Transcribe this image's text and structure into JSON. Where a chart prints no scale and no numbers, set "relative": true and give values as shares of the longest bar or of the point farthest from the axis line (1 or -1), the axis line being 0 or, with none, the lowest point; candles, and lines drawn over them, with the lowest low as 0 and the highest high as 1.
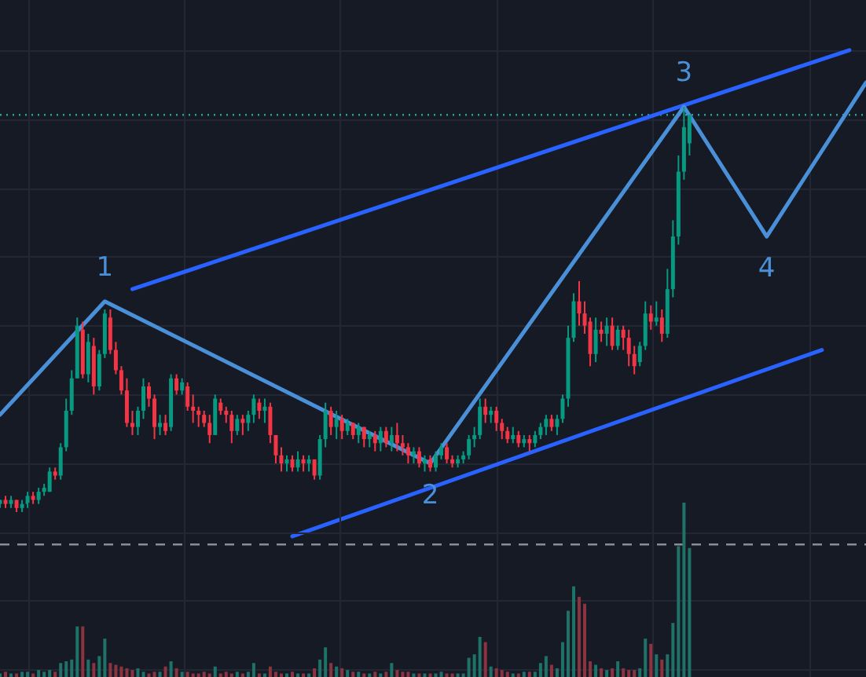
{
  "chart_data": [
    {
      "type": "candlestick",
      "relative": true,
      "grid": true,
      "categories": [
        null,
        null,
        null,
        null,
        null,
        null,
        null,
        null,
        null,
        null,
        null,
        null,
        null,
        null,
        null,
        null,
        null,
        null,
        null,
        null,
        null,
        null,
        null,
        null,
        null,
        null,
        null,
        null,
        null,
        null,
        null,
        null,
        null,
        null,
        null,
        null,
        null,
        null,
        null,
        null,
        null,
        null,
        null,
        null,
        null,
        null,
        null,
        null,
        null,
        null,
        null,
        null,
        null,
        null,
        null,
        null,
        null,
        null,
        null,
        null,
        null,
        null,
        null,
        null,
        null,
        null,
        null,
        null,
        null,
        null,
        null,
        null,
        null,
        null,
        null,
        null,
        null,
        null,
        null,
        null,
        null,
        null,
        null,
        null,
        null,
        null,
        null,
        null,
        null,
        null,
        null,
        null,
        null,
        null,
        null,
        null,
        null,
        null,
        null,
        null,
        null,
        null,
        null,
        null,
        null,
        null,
        null,
        null,
        null,
        null,
        null,
        null,
        null,
        null,
        null,
        null,
        null,
        null,
        null,
        null,
        null,
        null,
        null,
        null,
        null,
        null,
        null,
        null,
        null,
        null,
        null,
        null,
        null,
        null,
        null,
        null,
        null,
        null,
        null,
        null,
        null,
        null,
        null,
        null,
        null,
        null,
        null,
        null,
        null,
        null,
        null,
        null,
        null,
        null,
        null,
        null,
        null,
        null
      ],
      "ohlc": [
        [
          0.02,
          0.03,
          0.01,
          0.03
        ],
        [
          0.03,
          0.04,
          0.01,
          0.02
        ],
        [
          0.02,
          0.04,
          0.01,
          0.03
        ],
        [
          0.03,
          0.03,
          0,
          0.01
        ],
        [
          0.01,
          0.03,
          0,
          0.02
        ],
        [
          0.02,
          0.05,
          0.01,
          0.04
        ],
        [
          0.04,
          0.05,
          0.02,
          0.03
        ],
        [
          0.03,
          0.06,
          0.02,
          0.05
        ],
        [
          0.05,
          0.07,
          0.04,
          0.06
        ],
        [
          0.05,
          0.11,
          0.05,
          0.1
        ],
        [
          0.1,
          0.11,
          0.08,
          0.09
        ],
        [
          0.09,
          0.17,
          0.08,
          0.16
        ],
        [
          0.16,
          0.28,
          0.15,
          0.25
        ],
        [
          0.25,
          0.35,
          0.24,
          0.33
        ],
        [
          0.33,
          0.48,
          0.33,
          0.46
        ],
        [
          0.45,
          0.47,
          0.33,
          0.34
        ],
        [
          0.34,
          0.44,
          0.32,
          0.42
        ],
        [
          0.41,
          0.43,
          0.29,
          0.31
        ],
        [
          0.31,
          0.4,
          0.3,
          0.39
        ],
        [
          0.39,
          0.5,
          0.38,
          0.49
        ],
        [
          0.48,
          0.5,
          0.39,
          0.4
        ],
        [
          0.4,
          0.42,
          0.34,
          0.35
        ],
        [
          0.35,
          0.36,
          0.29,
          0.3
        ],
        [
          0.3,
          0.33,
          0.21,
          0.22
        ],
        [
          0.22,
          0.25,
          0.19,
          0.21
        ],
        [
          0.21,
          0.26,
          0.19,
          0.25
        ],
        [
          0.25,
          0.33,
          0.23,
          0.31
        ],
        [
          0.31,
          0.32,
          0.26,
          0.28
        ],
        [
          0.28,
          0.29,
          0.18,
          0.21
        ],
        [
          0.21,
          0.24,
          0.19,
          0.22
        ],
        [
          0.22,
          0.24,
          0.19,
          0.2
        ],
        [
          0.21,
          0.34,
          0.2,
          0.33
        ],
        [
          0.33,
          0.34,
          0.29,
          0.3
        ],
        [
          0.3,
          0.33,
          0.29,
          0.32
        ],
        [
          0.31,
          0.32,
          0.25,
          0.26
        ],
        [
          0.26,
          0.29,
          0.22,
          0.25
        ],
        [
          0.25,
          0.26,
          0.21,
          0.24
        ],
        [
          0.24,
          0.25,
          0.21,
          0.22
        ],
        [
          0.22,
          0.24,
          0.17,
          0.19
        ],
        [
          0.19,
          0.29,
          0.19,
          0.28
        ],
        [
          0.27,
          0.28,
          0.24,
          0.25
        ],
        [
          0.25,
          0.26,
          0.22,
          0.24
        ],
        [
          0.24,
          0.25,
          0.17,
          0.2
        ],
        [
          0.2,
          0.24,
          0.19,
          0.23
        ],
        [
          0.23,
          0.24,
          0.19,
          0.22
        ],
        [
          0.22,
          0.25,
          0.2,
          0.24
        ],
        [
          0.24,
          0.29,
          0.22,
          0.28
        ],
        [
          0.27,
          0.28,
          0.23,
          0.25
        ],
        [
          0.25,
          0.28,
          0.22,
          0.26
        ],
        [
          0.26,
          0.27,
          0.17,
          0.19
        ],
        [
          0.19,
          0.19,
          0.12,
          0.14
        ],
        [
          0.14,
          0.16,
          0.1,
          0.12
        ],
        [
          0.12,
          0.14,
          0.1,
          0.13
        ],
        [
          0.13,
          0.14,
          0.1,
          0.11
        ],
        [
          0.11,
          0.15,
          0.1,
          0.13
        ],
        [
          0.13,
          0.14,
          0.1,
          0.12
        ],
        [
          0.12,
          0.14,
          0.1,
          0.13
        ],
        [
          0.13,
          0.13,
          0.08,
          0.09
        ],
        [
          0.09,
          0.19,
          0.08,
          0.18
        ],
        [
          0.18,
          0.27,
          0.16,
          0.25
        ],
        [
          0.25,
          0.26,
          0.19,
          0.21
        ],
        [
          0.21,
          0.25,
          0.18,
          0.23
        ],
        [
          0.23,
          0.24,
          0.18,
          0.2
        ],
        [
          0.2,
          0.23,
          0.19,
          0.22
        ],
        [
          0.22,
          0.22,
          0.18,
          0.19
        ],
        [
          0.19,
          0.22,
          0.17,
          0.21
        ],
        [
          0.21,
          0.21,
          0.16,
          0.18
        ],
        [
          0.18,
          0.2,
          0.16,
          0.19
        ],
        [
          0.19,
          0.2,
          0.15,
          0.17
        ],
        [
          0.17,
          0.21,
          0.15,
          0.2
        ],
        [
          0.2,
          0.21,
          0.16,
          0.17
        ],
        [
          0.17,
          0.21,
          0.15,
          0.19
        ],
        [
          0.19,
          0.22,
          0.15,
          0.17
        ],
        [
          0.17,
          0.19,
          0.14,
          0.16
        ],
        [
          0.16,
          0.17,
          0.12,
          0.14
        ],
        [
          0.14,
          0.16,
          0.12,
          0.15
        ],
        [
          0.15,
          0.16,
          0.11,
          0.12
        ],
        [
          0.12,
          0.14,
          0.1,
          0.13
        ],
        [
          0.13,
          0.14,
          0.1,
          0.11
        ],
        [
          0.11,
          0.15,
          0.1,
          0.14
        ],
        [
          0.14,
          0.17,
          0.13,
          0.16
        ],
        [
          0.16,
          0.17,
          0.12,
          0.13
        ],
        [
          0.13,
          0.14,
          0.11,
          0.12
        ],
        [
          0.12,
          0.14,
          0.11,
          0.13
        ],
        [
          0.13,
          0.15,
          0.12,
          0.14
        ],
        [
          0.14,
          0.19,
          0.13,
          0.18
        ],
        [
          0.18,
          0.21,
          0.16,
          0.19
        ],
        [
          0.19,
          0.28,
          0.18,
          0.26
        ],
        [
          0.26,
          0.28,
          0.22,
          0.24
        ],
        [
          0.24,
          0.26,
          0.22,
          0.25
        ],
        [
          0.25,
          0.26,
          0.2,
          0.22
        ],
        [
          0.22,
          0.23,
          0.18,
          0.2
        ],
        [
          0.2,
          0.21,
          0.17,
          0.18
        ],
        [
          0.18,
          0.21,
          0.17,
          0.19
        ],
        [
          0.19,
          0.2,
          0.16,
          0.17
        ],
        [
          0.17,
          0.19,
          0.16,
          0.18
        ],
        [
          0.18,
          0.19,
          0.15,
          0.17
        ],
        [
          0.17,
          0.2,
          0.16,
          0.19
        ],
        [
          0.19,
          0.22,
          0.18,
          0.21
        ],
        [
          0.21,
          0.24,
          0.19,
          0.23
        ],
        [
          0.23,
          0.24,
          0.2,
          0.21
        ],
        [
          0.21,
          0.24,
          0.19,
          0.23
        ],
        [
          0.23,
          0.29,
          0.22,
          0.28
        ],
        [
          0.28,
          0.46,
          0.26,
          0.43
        ],
        [
          0.43,
          0.54,
          0.42,
          0.52
        ],
        [
          0.52,
          0.57,
          0.46,
          0.49
        ],
        [
          0.49,
          0.52,
          0.44,
          0.46
        ],
        [
          0.47,
          0.48,
          0.36,
          0.39
        ],
        [
          0.39,
          0.48,
          0.37,
          0.45
        ],
        [
          0.45,
          0.47,
          0.42,
          0.44
        ],
        [
          0.44,
          0.48,
          0.41,
          0.46
        ],
        [
          0.46,
          0.48,
          0.4,
          0.41
        ],
        [
          0.41,
          0.46,
          0.4,
          0.45
        ],
        [
          0.45,
          0.46,
          0.4,
          0.43
        ],
        [
          0.43,
          0.45,
          0.36,
          0.39
        ],
        [
          0.39,
          0.41,
          0.34,
          0.36
        ],
        [
          0.37,
          0.42,
          0.36,
          0.41
        ],
        [
          0.41,
          0.52,
          0.4,
          0.49
        ],
        [
          0.49,
          0.51,
          0.45,
          0.47
        ],
        [
          0.47,
          0.52,
          0.46,
          0.48
        ],
        [
          0.48,
          0.5,
          0.42,
          0.44
        ],
        [
          0.44,
          0.6,
          0.43,
          0.55
        ],
        [
          0.55,
          0.72,
          0.53,
          0.68
        ],
        [
          0.68,
          0.88,
          0.66,
          0.84
        ],
        [
          0.84,
          1,
          0.82,
          0.95
        ],
        [
          0.91,
          0.98,
          0.88,
          0.98
        ],
        null,
        null,
        null,
        null,
        null,
        null,
        null,
        null,
        null,
        null,
        null,
        null,
        null,
        null,
        null,
        null,
        null,
        null,
        null,
        null,
        null,
        null,
        null,
        null,
        null,
        null,
        null,
        null,
        null,
        null,
        null,
        null
      ],
      "series": [
        {
          "type": "line",
          "color": "#4a90d9",
          "values": [
            0.24,
            null,
            null,
            null,
            null,
            null,
            null,
            null,
            null,
            null,
            null,
            null,
            null,
            null,
            null,
            null,
            null,
            null,
            null,
            0.52,
            null,
            null,
            null,
            null,
            null,
            null,
            null,
            null,
            null,
            null,
            null,
            null,
            null,
            null,
            null,
            null,
            null,
            null,
            null,
            null,
            null,
            null,
            null,
            null,
            null,
            null,
            null,
            null,
            null,
            null,
            null,
            null,
            null,
            null,
            null,
            null,
            null,
            null,
            null,
            null,
            null,
            null,
            null,
            null,
            null,
            null,
            null,
            null,
            null,
            null,
            null,
            null,
            null,
            null,
            null,
            null,
            null,
            null,
            0.12,
            null,
            null,
            null,
            null,
            null,
            null,
            null,
            null,
            null,
            null,
            null,
            null,
            null,
            null,
            null,
            null,
            null,
            null,
            null,
            null,
            null,
            null,
            null,
            null,
            null,
            null,
            null,
            null,
            null,
            null,
            null,
            null,
            null,
            null,
            null,
            null,
            null,
            null,
            null,
            null,
            null,
            null,
            null,
            null,
            null,
            1,
            null,
            null,
            null,
            null,
            null,
            null,
            null,
            null,
            null,
            null,
            null,
            null,
            null,
            null,
            0.68,
            null,
            null,
            null,
            null,
            null,
            null,
            null,
            null,
            null,
            null,
            null,
            null,
            null,
            null,
            null,
            null,
            null,
            1.06
          ]
        },
        {
          "type": "line",
          "color": "#2962ff",
          "values": [
            null,
            null,
            null,
            null,
            null,
            null,
            null,
            null,
            null,
            null,
            null,
            null,
            null,
            null,
            null,
            null,
            null,
            null,
            null,
            null,
            null,
            null,
            null,
            null,
            0.55,
            null,
            null,
            null,
            null,
            null,
            null,
            null,
            null,
            null,
            null,
            null,
            null,
            null,
            null,
            null,
            null,
            null,
            null,
            null,
            null,
            null,
            null,
            null,
            null,
            null,
            null,
            null,
            null,
            null,
            null,
            null,
            null,
            null,
            null,
            null,
            null,
            null,
            null,
            null,
            null,
            null,
            null,
            null,
            null,
            null,
            null,
            null,
            null,
            null,
            null,
            null,
            null,
            null,
            null,
            null,
            null,
            null,
            null,
            null,
            null,
            null,
            null,
            null,
            null,
            null,
            null,
            null,
            null,
            null,
            null,
            null,
            null,
            null,
            null,
            null,
            null,
            null,
            null,
            null,
            null,
            null,
            null,
            null,
            null,
            null,
            null,
            null,
            null,
            null,
            null,
            null,
            null,
            null,
            null,
            null,
            null,
            null,
            null,
            null,
            null,
            null,
            null,
            null,
            null,
            null,
            null,
            null,
            null,
            null,
            null,
            null,
            null,
            null,
            null,
            null,
            null,
            null,
            null,
            null,
            null,
            null,
            null,
            null,
            null,
            null,
            null,
            null,
            null,
            null,
            1.14,
            null,
            null,
            null
          ]
        },
        {
          "type": "line",
          "color": "#2962ff",
          "values": [
            null,
            null,
            null,
            null,
            null,
            null,
            null,
            null,
            null,
            null,
            null,
            null,
            null,
            null,
            null,
            null,
            null,
            null,
            null,
            null,
            null,
            null,
            null,
            null,
            null,
            null,
            null,
            null,
            null,
            null,
            null,
            null,
            null,
            null,
            null,
            null,
            null,
            null,
            null,
            null,
            null,
            null,
            null,
            null,
            null,
            null,
            null,
            null,
            null,
            null,
            null,
            null,
            null,
            -0.06,
            null,
            null,
            null,
            null,
            null,
            null,
            null,
            null,
            null,
            null,
            null,
            null,
            null,
            null,
            null,
            null,
            null,
            null,
            null,
            null,
            null,
            null,
            null,
            null,
            null,
            null,
            null,
            null,
            null,
            null,
            null,
            null,
            null,
            null,
            null,
            null,
            null,
            null,
            null,
            null,
            null,
            null,
            null,
            null,
            null,
            null,
            null,
            null,
            null,
            null,
            null,
            null,
            null,
            null,
            null,
            null,
            null,
            null,
            null,
            null,
            null,
            null,
            null,
            null,
            null,
            null,
            null,
            null,
            null,
            null,
            null,
            null,
            null,
            null,
            null,
            null,
            null,
            null,
            null,
            null,
            null,
            null,
            null,
            null,
            null,
            null,
            null,
            null,
            null,
            null,
            null,
            null,
            null,
            null,
            null,
            0.4,
            null,
            null,
            null,
            null,
            null,
            null,
            null,
            null
          ]
        }
      ],
      "ref_lines": [
        {
          "axis": "y",
          "value": 0.98,
          "color": "#26a69a",
          "line_style": "dotted"
        },
        {
          "axis": "y",
          "value": -0.08,
          "color": "#8a8d96",
          "line_style": "dashed"
        }
      ],
      "annotations": [
        "1",
        "2",
        "3",
        "4"
      ]
    },
    {
      "type": "bar",
      "relative": true,
      "grid": true,
      "categories": [
        null,
        null,
        null,
        null,
        null,
        null,
        null,
        null,
        null,
        null,
        null,
        null,
        null,
        null,
        null,
        null,
        null,
        null,
        null,
        null,
        null,
        null,
        null,
        null,
        null,
        null,
        null,
        null,
        null,
        null,
        null,
        null,
        null,
        null,
        null,
        null,
        null,
        null,
        null,
        null,
        null,
        null,
        null,
        null,
        null,
        null,
        null,
        null,
        null,
        null,
        null,
        null,
        null,
        null,
        null,
        null,
        null,
        null,
        null,
        null,
        null,
        null,
        null,
        null,
        null,
        null,
        null,
        null,
        null,
        null,
        null,
        null,
        null,
        null,
        null,
        null,
        null,
        null,
        null,
        null,
        null,
        null,
        null,
        null,
        null,
        null,
        null,
        null,
        null,
        null,
        null,
        null,
        null,
        null,
        null,
        null,
        null,
        null,
        null,
        null,
        null,
        null,
        null,
        null,
        null,
        null,
        null,
        null,
        null,
        null,
        null,
        null,
        null,
        null,
        null,
        null,
        null,
        null,
        null,
        null,
        null,
        null,
        null,
        null,
        null,
        null,
        null,
        null,
        null,
        null,
        null,
        null,
        null,
        null,
        null,
        null,
        null,
        null,
        null,
        null,
        null,
        null,
        null,
        null,
        null,
        null,
        null,
        null,
        null,
        null,
        null,
        null,
        null,
        null,
        null,
        null,
        null,
        null
      ],
      "values": [
        0.02,
        0.03,
        0.02,
        0.02,
        0.03,
        0.03,
        0.02,
        0.04,
        0.03,
        0.04,
        0.03,
        0.08,
        0.09,
        0.1,
        0.29,
        0.29,
        0.1,
        0.08,
        0.12,
        0.22,
        0.08,
        0.07,
        0.06,
        0.05,
        0.04,
        0.05,
        0.03,
        0.02,
        0.03,
        0.03,
        0.06,
        0.09,
        0.05,
        0.03,
        0.03,
        0.02,
        0.02,
        0.03,
        0.02,
        0.06,
        0.02,
        0.03,
        0.02,
        0.03,
        0.02,
        0.03,
        0.08,
        0.02,
        0.02,
        0.06,
        0.03,
        0.02,
        0.02,
        0.03,
        0.02,
        0.02,
        0.02,
        0.05,
        0.1,
        0.17,
        0.08,
        0.06,
        0.05,
        0.04,
        0.03,
        0.03,
        0.02,
        0.02,
        0.03,
        0.02,
        0.03,
        0.08,
        0.04,
        0.03,
        0.03,
        0.02,
        0.02,
        0.02,
        0.02,
        0.02,
        0.03,
        0.02,
        0.02,
        0.02,
        0.02,
        0.11,
        0.13,
        0.23,
        0.2,
        0.06,
        0.05,
        0.04,
        0.03,
        0.02,
        0.02,
        0.03,
        0.03,
        0.03,
        0.08,
        0.12,
        0.07,
        0.05,
        0.2,
        0.38,
        0.52,
        0.46,
        0.42,
        0.09,
        0.07,
        0.05,
        0.04,
        0.05,
        0.09,
        0.05,
        0.04,
        0.04,
        0.05,
        0.22,
        0.19,
        0.13,
        0.1,
        0.13,
        0.31,
        0.75,
        1,
        0.74,
        null,
        null,
        null,
        null,
        null,
        null,
        null,
        null,
        null,
        null,
        null,
        null,
        null,
        null,
        null,
        null,
        null,
        null,
        null,
        null,
        null,
        null,
        null,
        null,
        null,
        null,
        null,
        null,
        null,
        null,
        null,
        null
      ],
      "colors": [
        "#1f7268",
        "#8c3340",
        "#1f7268",
        "#8c3340",
        "#1f7268",
        "#1f7268",
        "#8c3340",
        "#1f7268",
        "#1f7268",
        "#1f7268",
        "#8c3340",
        "#1f7268",
        "#1f7268",
        "#1f7268",
        "#1f7268",
        "#8c3340",
        "#1f7268",
        "#8c3340",
        "#1f7268",
        "#1f7268",
        "#8c3340",
        "#8c3340",
        "#8c3340",
        "#8c3340",
        "#8c3340",
        "#1f7268",
        "#1f7268",
        "#8c3340",
        "#8c3340",
        "#1f7268",
        "#8c3340",
        "#1f7268",
        "#8c3340",
        "#1f7268",
        "#8c3340",
        "#8c3340",
        "#8c3340",
        "#8c3340",
        "#8c3340",
        "#1f7268",
        "#8c3340",
        "#8c3340",
        "#8c3340",
        "#1f7268",
        "#8c3340",
        "#1f7268",
        "#1f7268",
        "#8c3340",
        "#1f7268",
        "#8c3340",
        "#8c3340",
        "#8c3340",
        "#1f7268",
        "#8c3340",
        "#1f7268",
        "#8c3340",
        "#1f7268",
        "#8c3340",
        "#1f7268",
        "#1f7268",
        "#8c3340",
        "#1f7268",
        "#8c3340",
        "#1f7268",
        "#8c3340",
        "#1f7268",
        "#8c3340",
        "#1f7268",
        "#8c3340",
        "#1f7268",
        "#8c3340",
        "#1f7268",
        "#8c3340",
        "#8c3340",
        "#8c3340",
        "#1f7268",
        "#8c3340",
        "#1f7268",
        "#8c3340",
        "#1f7268",
        "#1f7268",
        "#8c3340",
        "#8c3340",
        "#1f7268",
        "#1f7268",
        "#1f7268",
        "#1f7268",
        "#1f7268",
        "#8c3340",
        "#1f7268",
        "#8c3340",
        "#8c3340",
        "#8c3340",
        "#1f7268",
        "#8c3340",
        "#1f7268",
        "#8c3340",
        "#1f7268",
        "#1f7268",
        "#1f7268",
        "#8c3340",
        "#1f7268",
        "#1f7268",
        "#1f7268",
        "#1f7268",
        "#8c3340",
        "#8c3340",
        "#8c3340",
        "#1f7268",
        "#8c3340",
        "#1f7268",
        "#8c3340",
        "#1f7268",
        "#8c3340",
        "#8c3340",
        "#8c3340",
        "#1f7268",
        "#1f7268",
        "#8c3340",
        "#1f7268",
        "#8c3340",
        "#1f7268",
        "#1f7268",
        "#1f7268",
        "#1f7268",
        "#1f7268",
        null,
        null,
        null,
        null,
        null,
        null,
        null,
        null,
        null,
        null,
        null,
        null,
        null,
        null,
        null,
        null,
        null,
        null,
        null,
        null,
        null,
        null,
        null,
        null,
        null,
        null,
        null,
        null,
        null,
        null,
        null,
        null
      ]
    }
  ]
}
